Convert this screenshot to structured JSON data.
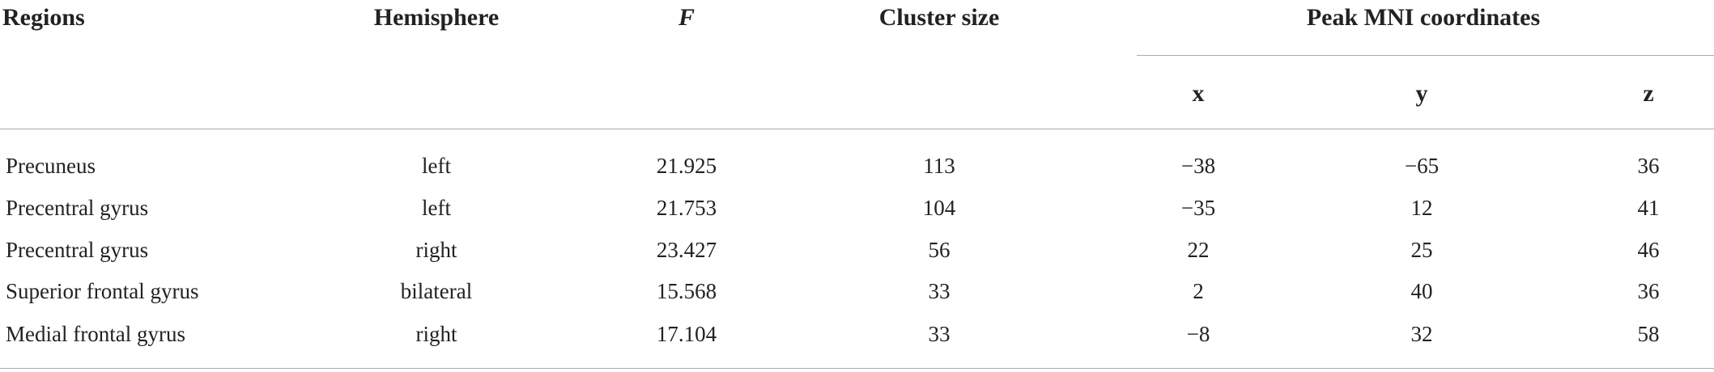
{
  "table": {
    "columns": [
      "Regions",
      "Hemisphere",
      "F",
      "Cluster size"
    ],
    "group": "Peak MNI coordinates",
    "subcolumns": [
      "x",
      "y",
      "z"
    ],
    "rows": [
      [
        "Precuneus",
        "left",
        "21.925",
        "113",
        "−38",
        "−65",
        "36"
      ],
      [
        "Precentral gyrus",
        "left",
        "21.753",
        "104",
        "−35",
        "12",
        "41"
      ],
      [
        "Precentral gyrus",
        "right",
        "23.427",
        "56",
        "22",
        "25",
        "46"
      ],
      [
        "Superior frontal gyrus",
        "bilateral",
        "15.568",
        "33",
        "2",
        "40",
        "36"
      ],
      [
        "Medial frontal gyrus",
        "right",
        "17.104",
        "33",
        "−8",
        "32",
        "58"
      ]
    ]
  }
}
